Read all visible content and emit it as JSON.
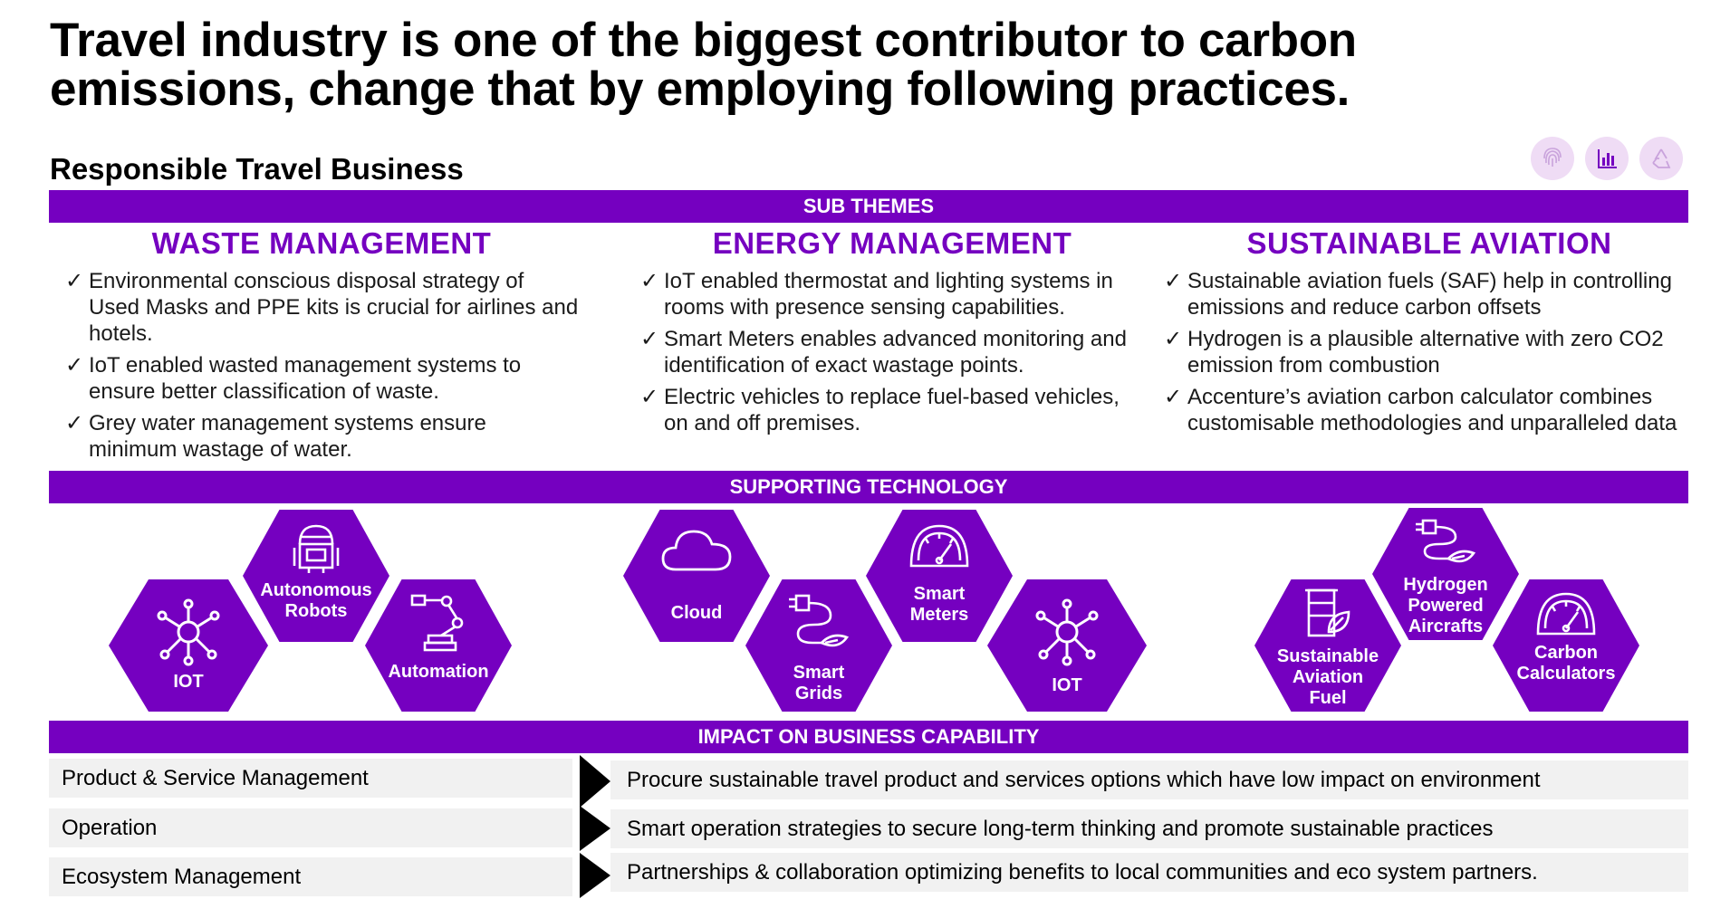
{
  "title": "Travel industry is one of the biggest contributor to carbon emissions, change that by employing following practices.",
  "subtitle": "Responsible Travel Business",
  "top_icons": [
    "fingerprint-icon",
    "bar-chart-icon",
    "recycle-icon"
  ],
  "colors": {
    "accent": "#7500c0",
    "row_bg": "#f1f1f1",
    "icon_bg": "#efdcf5"
  },
  "bands": {
    "sub_themes": "SUB THEMES",
    "supporting_technology": "SUPPORTING TECHNOLOGY",
    "impact": "IMPACT ON BUSINESS CAPABILITY"
  },
  "columns": [
    {
      "heading": "WASTE MANAGEMENT",
      "items": [
        "Environmental conscious disposal strategy of Used Masks and PPE kits is crucial for airlines and hotels.",
        "IoT enabled wasted management systems to ensure better classification of waste.",
        "Grey water management systems ensure minimum wastage of water."
      ]
    },
    {
      "heading": "ENERGY MANAGEMENT",
      "items": [
        "IoT enabled thermostat and lighting systems in rooms with presence sensing capabilities.",
        "Smart Meters enables advanced monitoring and identification of exact wastage points.",
        "Electric vehicles to replace fuel-based vehicles, on and off premises."
      ]
    },
    {
      "heading": "SUSTAINABLE AVIATION",
      "items": [
        "Sustainable aviation fuels (SAF) help in controlling emissions and reduce carbon offsets",
        "Hydrogen is a plausible alternative with zero CO2 emission from combustion",
        "Accenture’s aviation carbon calculator combines customisable methodologies and unparalleled data"
      ]
    }
  ],
  "check_mark": "✓",
  "technologies": {
    "iot_waste": "IOT",
    "robots": "Autonomous\nRobots",
    "automation": "Automation",
    "cloud": "Cloud",
    "smart_grids": "Smart\nGrids",
    "smart_meters": "Smart\nMeters",
    "iot_energy": "IOT",
    "saf": "Sustainable\nAviation\nFuel",
    "hydrogen": "Hydrogen\nPowered\nAircrafts",
    "carbon_calc": "Carbon\nCalculators"
  },
  "impact_rows": [
    {
      "capability": "Product & Service Management",
      "description": "Procure sustainable travel product and services options which have low impact on environment"
    },
    {
      "capability": "Operation",
      "description": "Smart operation strategies to secure long-term thinking and promote sustainable practices"
    },
    {
      "capability": "Ecosystem Management",
      "description": "Partnerships & collaboration optimizing benefits to local communities and eco system partners."
    }
  ]
}
